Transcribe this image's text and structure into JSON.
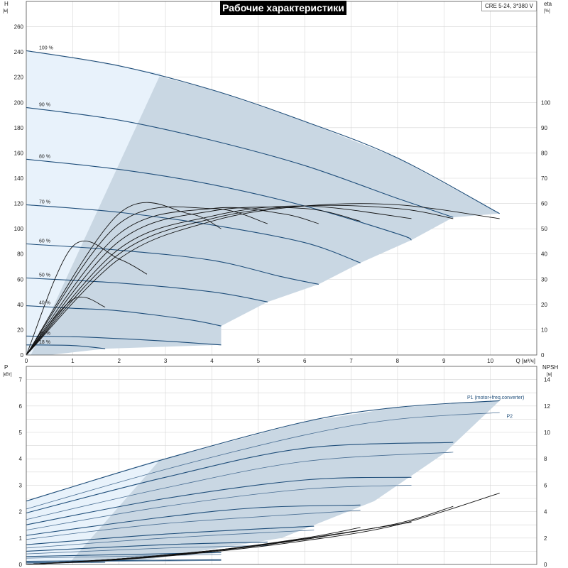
{
  "title": "Рабочие характеристики",
  "model": "CRE 5-24, 3*380 V",
  "colors": {
    "band": "#c9d7e3",
    "band_light": "#e8f2fb",
    "curve_blue": "#1f4e7a",
    "curve_black": "#111111",
    "grid": "#d6d6d6"
  },
  "chart_data": [
    {
      "type": "line",
      "panel": "head-efficiency",
      "title": "Рабочие характеристики",
      "xlabel": "Q [м³/ч]",
      "xlim": [
        0,
        11
      ],
      "x_ticks": [
        "0",
        "1",
        "2",
        "3",
        "4",
        "5",
        "6",
        "7",
        "8",
        "9",
        "10"
      ],
      "left_axis": {
        "label_top": "H",
        "label_unit": "[м]",
        "ylim": [
          0,
          280
        ],
        "ticks": [
          "0",
          "20",
          "40",
          "60",
          "80",
          "100",
          "120",
          "140",
          "160",
          "180",
          "200",
          "220",
          "240",
          "260"
        ]
      },
      "right_axis": {
        "label_top": "eta",
        "label_unit": "[%]",
        "ylim": [
          0,
          140
        ],
        "ticks": [
          "0",
          "10",
          "20",
          "30",
          "40",
          "50",
          "60",
          "70",
          "80",
          "90",
          "100"
        ]
      },
      "grid": true,
      "speed_curves": [
        {
          "name": "100 %",
          "points": [
            [
              0,
              241
            ],
            [
              2,
              229
            ],
            [
              4,
              210
            ],
            [
              6,
              185
            ],
            [
              8,
              156
            ],
            [
              10.2,
              112
            ]
          ]
        },
        {
          "name": "90 %",
          "points": [
            [
              0,
              196
            ],
            [
              2,
              186
            ],
            [
              4,
              170
            ],
            [
              6,
              150
            ],
            [
              8,
              124
            ],
            [
              9.2,
              109
            ]
          ]
        },
        {
          "name": "80 %",
          "points": [
            [
              0,
              155
            ],
            [
              2,
              147
            ],
            [
              4,
              135
            ],
            [
              6,
              118
            ],
            [
              8,
              96
            ],
            [
              8.3,
              91
            ]
          ]
        },
        {
          "name": "70 %",
          "points": [
            [
              0,
              119
            ],
            [
              2,
              113
            ],
            [
              4,
              103
            ],
            [
              6,
              89
            ],
            [
              7.2,
              73
            ]
          ]
        },
        {
          "name": "60 %",
          "points": [
            [
              0,
              88
            ],
            [
              2,
              83
            ],
            [
              4,
              75
            ],
            [
              5.5,
              62
            ],
            [
              6.3,
              56
            ]
          ]
        },
        {
          "name": "50 %",
          "points": [
            [
              0,
              61
            ],
            [
              2,
              57
            ],
            [
              4,
              50
            ],
            [
              5.2,
              42
            ]
          ]
        },
        {
          "name": "40 %",
          "points": [
            [
              0,
              39
            ],
            [
              1,
              37
            ],
            [
              2,
              35
            ],
            [
              3.5,
              28
            ],
            [
              4.2,
              23
            ]
          ]
        },
        {
          "name": "25 %",
          "points": [
            [
              0,
              15
            ],
            [
              1,
              14.5
            ],
            [
              2,
              13
            ],
            [
              3,
              11
            ],
            [
              4.2,
              8
            ]
          ]
        },
        {
          "name": "18 %",
          "points": [
            [
              0,
              8
            ],
            [
              1,
              7.5
            ],
            [
              1.7,
              5
            ]
          ]
        }
      ],
      "efficiency_curves": [
        {
          "name": "eta 100 %",
          "points": [
            [
              0,
              0
            ],
            [
              2,
              38
            ],
            [
              4,
              53
            ],
            [
              6,
              59
            ],
            [
              8,
              59.5
            ],
            [
              10.2,
              54
            ]
          ]
        },
        {
          "name": "eta 90 %",
          "points": [
            [
              0,
              0
            ],
            [
              2,
              40
            ],
            [
              4,
              54
            ],
            [
              6,
              59
            ],
            [
              8,
              58
            ],
            [
              9.2,
              54
            ]
          ]
        },
        {
          "name": "eta 80 %",
          "points": [
            [
              0,
              0
            ],
            [
              2,
              42
            ],
            [
              4,
              55
            ],
            [
              6,
              59
            ],
            [
              8.3,
              54
            ]
          ]
        },
        {
          "name": "eta 70 %",
          "points": [
            [
              0,
              0
            ],
            [
              2,
              45
            ],
            [
              4,
              57
            ],
            [
              6,
              58
            ],
            [
              7.2,
              53
            ]
          ]
        },
        {
          "name": "eta 60 %",
          "points": [
            [
              0,
              0
            ],
            [
              2,
              48
            ],
            [
              4,
              58
            ],
            [
              5.5,
              56
            ],
            [
              6.3,
              52
            ]
          ]
        },
        {
          "name": "eta 50 %",
          "points": [
            [
              0,
              0
            ],
            [
              2,
              52
            ],
            [
              4,
              58
            ],
            [
              5.2,
              52
            ]
          ]
        },
        {
          "name": "eta 40 %",
          "points": [
            [
              0,
              0
            ],
            [
              2,
              56
            ],
            [
              3.5,
              56
            ],
            [
              4.2,
              50
            ]
          ]
        },
        {
          "name": "eta 25 %",
          "points": [
            [
              0,
              0
            ],
            [
              1,
              43
            ],
            [
              2,
              38
            ],
            [
              2.6,
              32
            ]
          ]
        },
        {
          "name": "eta 18 %",
          "points": [
            [
              0,
              0
            ],
            [
              1,
              22
            ],
            [
              1.7,
              19
            ]
          ]
        }
      ]
    },
    {
      "type": "line",
      "panel": "power-npsh",
      "xlim": [
        0,
        11
      ],
      "left_axis": {
        "label_top": "P",
        "label_unit": "[кВт]",
        "ylim": [
          0,
          7.5
        ],
        "ticks": [
          "0",
          "1",
          "2",
          "3",
          "4",
          "5",
          "6",
          "7"
        ]
      },
      "right_axis": {
        "label_top": "NPSH",
        "label_unit": "[м]",
        "ylim": [
          0,
          15
        ],
        "ticks": [
          "0",
          "2",
          "4",
          "6",
          "8",
          "10",
          "12",
          "14"
        ]
      },
      "grid": true,
      "p1_label": "P1 (motor+freq.converter)",
      "p2_label": "P2",
      "power_p1": [
        {
          "points": [
            [
              0,
              2.4
            ],
            [
              3,
              4.0
            ],
            [
              6,
              5.4
            ],
            [
              8,
              5.95
            ],
            [
              10.2,
              6.2
            ]
          ]
        },
        {
          "points": [
            [
              0,
              1.95
            ],
            [
              3,
              3.3
            ],
            [
              6,
              4.4
            ],
            [
              9.2,
              4.62
            ]
          ]
        },
        {
          "points": [
            [
              0,
              1.5
            ],
            [
              3,
              2.5
            ],
            [
              6,
              3.2
            ],
            [
              8.3,
              3.3
            ]
          ]
        },
        {
          "points": [
            [
              0,
              1.1
            ],
            [
              3,
              1.8
            ],
            [
              5,
              2.15
            ],
            [
              7.2,
              2.25
            ]
          ]
        },
        {
          "points": [
            [
              0,
              0.75
            ],
            [
              3,
              1.15
            ],
            [
              6.2,
              1.45
            ]
          ]
        },
        {
          "points": [
            [
              0,
              0.5
            ],
            [
              3,
              0.75
            ],
            [
              5.2,
              0.85
            ]
          ]
        },
        {
          "points": [
            [
              0,
              0.3
            ],
            [
              4.2,
              0.45
            ]
          ]
        },
        {
          "points": [
            [
              0,
              0.12
            ],
            [
              4.2,
              0.18
            ]
          ]
        },
        {
          "points": [
            [
              0,
              0.06
            ],
            [
              1.7,
              0.08
            ]
          ]
        }
      ],
      "power_p2": [
        {
          "points": [
            [
              0,
              2.1
            ],
            [
              3,
              3.6
            ],
            [
              6,
              4.9
            ],
            [
              8,
              5.5
            ],
            [
              10.2,
              5.75
            ]
          ]
        },
        {
          "points": [
            [
              0,
              1.7
            ],
            [
              3,
              2.9
            ],
            [
              6,
              3.9
            ],
            [
              9.2,
              4.25
            ]
          ]
        },
        {
          "points": [
            [
              0,
              1.3
            ],
            [
              3,
              2.2
            ],
            [
              6,
              2.85
            ],
            [
              8.3,
              3.0
            ]
          ]
        },
        {
          "points": [
            [
              0,
              0.95
            ],
            [
              3,
              1.55
            ],
            [
              7.2,
              2.05
            ]
          ]
        },
        {
          "points": [
            [
              0,
              0.62
            ],
            [
              3,
              1.0
            ],
            [
              6.2,
              1.3
            ]
          ]
        },
        {
          "points": [
            [
              0,
              0.4
            ],
            [
              3,
              0.62
            ],
            [
              5.2,
              0.72
            ]
          ]
        },
        {
          "points": [
            [
              0,
              0.24
            ],
            [
              4.2,
              0.38
            ]
          ]
        },
        {
          "points": [
            [
              0,
              0.1
            ],
            [
              4.2,
              0.15
            ]
          ]
        }
      ],
      "npsh_curves": [
        {
          "points": [
            [
              0,
              0
            ],
            [
              2,
              0.35
            ],
            [
              4,
              0.95
            ],
            [
              6,
              1.8
            ],
            [
              8,
              3.0
            ],
            [
              10.2,
              5.4
            ]
          ]
        },
        {
          "points": [
            [
              0,
              0
            ],
            [
              2,
              0.38
            ],
            [
              4,
              1.0
            ],
            [
              6,
              1.9
            ],
            [
              8,
              3.1
            ],
            [
              9.2,
              4.4
            ]
          ]
        },
        {
          "points": [
            [
              0,
              0
            ],
            [
              2,
              0.4
            ],
            [
              4,
              1.02
            ],
            [
              6,
              1.95
            ],
            [
              8.3,
              3.2
            ]
          ]
        },
        {
          "points": [
            [
              0,
              0
            ],
            [
              2,
              0.4
            ],
            [
              4,
              1.05
            ],
            [
              6,
              2.0
            ],
            [
              7.2,
              2.8
            ]
          ]
        },
        {
          "points": [
            [
              0,
              0
            ],
            [
              2,
              0.42
            ],
            [
              4,
              1.05
            ],
            [
              6.2,
              2.0
            ]
          ]
        },
        {
          "points": [
            [
              0,
              0
            ],
            [
              2,
              0.42
            ],
            [
              4,
              1.05
            ],
            [
              5.2,
              1.5
            ]
          ]
        },
        {
          "points": [
            [
              0,
              0
            ],
            [
              2,
              0.42
            ],
            [
              4.2,
              1.1
            ]
          ]
        },
        {
          "points": [
            [
              0,
              0
            ],
            [
              2,
              0.42
            ],
            [
              2.6,
              0.6
            ]
          ]
        }
      ]
    }
  ]
}
